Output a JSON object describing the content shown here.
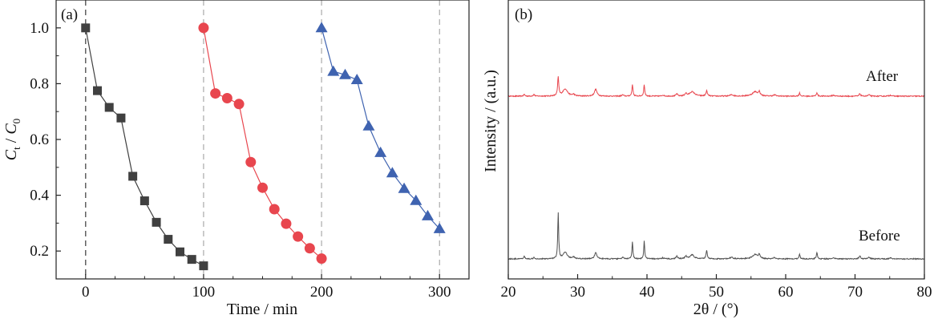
{
  "chart_data": [
    {
      "type": "line",
      "panel_label": "(a)",
      "xlabel": "Time / min",
      "ylabel_main": "C",
      "ylabel_sub1": "t",
      "ylabel_sep": " / ",
      "ylabel_sub2": "0",
      "xlim": [
        -25,
        325
      ],
      "ylim": [
        0.1,
        1.1
      ],
      "xticks": [
        0,
        100,
        200,
        300
      ],
      "yticks": [
        0.2,
        0.4,
        0.6,
        0.8,
        1.0
      ],
      "xtick_labels": [
        "0",
        "100",
        "200",
        "300"
      ],
      "ytick_labels": [
        "0.2",
        "0.4",
        "0.6",
        "0.8",
        "1.0"
      ],
      "vlines": [
        0,
        100,
        200,
        300
      ],
      "series": [
        {
          "marker": "square",
          "color": "#404040",
          "x": [
            0,
            10,
            20,
            30,
            40,
            50,
            60,
            70,
            80,
            90,
            100
          ],
          "y": [
            1.0,
            0.775,
            0.715,
            0.677,
            0.468,
            0.38,
            0.303,
            0.242,
            0.197,
            0.17,
            0.147
          ]
        },
        {
          "marker": "circle",
          "color": "#e8464e",
          "x": [
            100,
            110,
            120,
            130,
            140,
            150,
            160,
            170,
            180,
            190,
            200
          ],
          "y": [
            1.0,
            0.765,
            0.748,
            0.727,
            0.519,
            0.427,
            0.35,
            0.298,
            0.252,
            0.21,
            0.173
          ]
        },
        {
          "marker": "triangle",
          "color": "#3f63b0",
          "x": [
            200,
            210,
            220,
            230,
            240,
            250,
            260,
            270,
            280,
            290,
            300
          ],
          "y": [
            1.0,
            0.844,
            0.832,
            0.814,
            0.648,
            0.553,
            0.48,
            0.424,
            0.381,
            0.326,
            0.28
          ]
        }
      ]
    },
    {
      "type": "line",
      "panel_label": "(b)",
      "xlabel": "2θ / (°)",
      "ylabel": "Intensity / (a.u.)",
      "xlim": [
        20,
        80
      ],
      "xticks": [
        20,
        30,
        40,
        50,
        60,
        70,
        80
      ],
      "xtick_labels": [
        "20",
        "30",
        "40",
        "50",
        "60",
        "70",
        "80"
      ],
      "series": [
        {
          "name": "After",
          "color": "#e8464e",
          "baseline": 120,
          "peaks": [
            [
              22.3,
              2.3,
              0.1
            ],
            [
              23.7,
              2.0,
              0.12
            ],
            [
              27.2,
              23,
              0.1
            ],
            [
              28.2,
              9,
              0.4
            ],
            [
              29.4,
              2.0,
              0.2
            ],
            [
              32.6,
              8.5,
              0.22
            ],
            [
              36.5,
              1.6,
              0.15
            ],
            [
              37.9,
              14.5,
              0.09
            ],
            [
              39.6,
              14,
              0.09
            ],
            [
              42.3,
              1.3,
              0.15
            ],
            [
              44.3,
              3.0,
              0.12
            ],
            [
              45.6,
              3.2,
              0.14
            ],
            [
              46.5,
              5.5,
              0.45
            ],
            [
              48.6,
              6.5,
              0.12
            ],
            [
              52.2,
              1.8,
              0.25
            ],
            [
              55.6,
              5.5,
              0.5
            ],
            [
              56.2,
              4.5,
              0.12
            ],
            [
              58.4,
              1.5,
              0.2
            ],
            [
              62.0,
              4.0,
              0.1
            ],
            [
              64.5,
              4.5,
              0.1
            ],
            [
              66.9,
              1.2,
              0.2
            ],
            [
              70.7,
              3.0,
              0.12
            ],
            [
              72.0,
              1.8,
              0.15
            ],
            [
              75.1,
              1.2,
              0.2
            ]
          ]
        },
        {
          "name": "Before",
          "color": "#505050",
          "baseline": 323,
          "peaks": [
            [
              22.3,
              3.2,
              0.1
            ],
            [
              23.7,
              2.0,
              0.12
            ],
            [
              27.2,
              57,
              0.08
            ],
            [
              28.2,
              8,
              0.35
            ],
            [
              29.4,
              2.2,
              0.2
            ],
            [
              32.6,
              7.5,
              0.2
            ],
            [
              36.5,
              1.8,
              0.15
            ],
            [
              37.9,
              21,
              0.08
            ],
            [
              39.6,
              22,
              0.08
            ],
            [
              42.3,
              1.3,
              0.15
            ],
            [
              44.3,
              4.0,
              0.12
            ],
            [
              45.6,
              3.5,
              0.14
            ],
            [
              46.5,
              5.0,
              0.35
            ],
            [
              48.6,
              11,
              0.1
            ],
            [
              52.2,
              1.8,
              0.25
            ],
            [
              55.6,
              5.5,
              0.45
            ],
            [
              56.2,
              5.0,
              0.12
            ],
            [
              58.4,
              1.5,
              0.2
            ],
            [
              62.0,
              5.5,
              0.1
            ],
            [
              64.5,
              7.5,
              0.1
            ],
            [
              66.9,
              1.4,
              0.2
            ],
            [
              70.7,
              4.0,
              0.12
            ],
            [
              72.0,
              2.0,
              0.15
            ],
            [
              75.1,
              1.2,
              0.2
            ]
          ]
        }
      ],
      "annotations": [
        "After",
        "Before"
      ]
    }
  ]
}
